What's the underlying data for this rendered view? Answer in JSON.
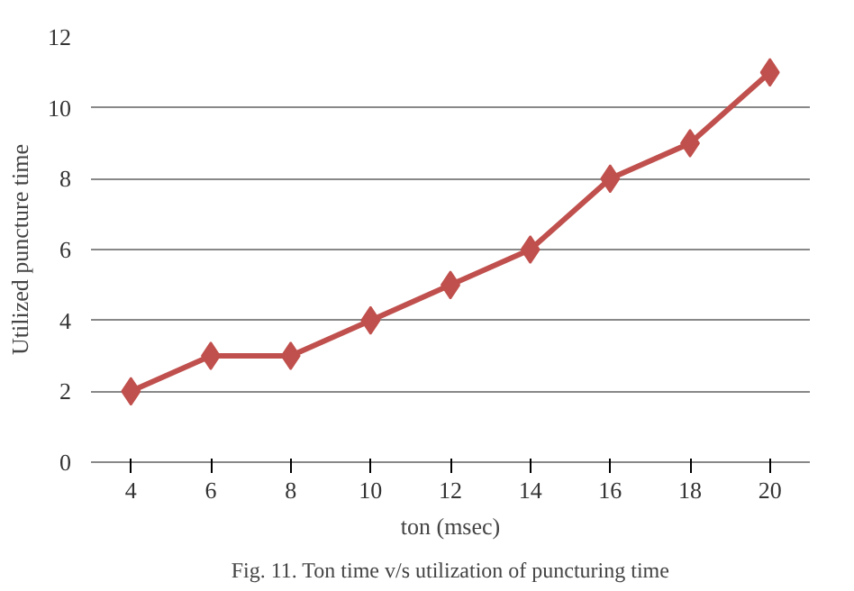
{
  "chart_data": {
    "type": "line",
    "xlabel": "ton (msec)",
    "ylabel": "Utilized puncture time",
    "categories": [
      "4",
      "6",
      "8",
      "10",
      "12",
      "14",
      "16",
      "18",
      "20"
    ],
    "series": [
      {
        "color": "#c0504d",
        "values": [
          2,
          3,
          3,
          4,
          5,
          6,
          8,
          9,
          11
        ]
      }
    ],
    "ylim": [
      0,
      12
    ],
    "yticks": [
      0,
      2,
      4,
      6,
      8,
      10,
      12
    ],
    "grid": "y",
    "marker": "diamond",
    "line_style": "solid",
    "annotations": [
      "Fig. 11. Ton time v/s utilization of puncturing time"
    ]
  }
}
